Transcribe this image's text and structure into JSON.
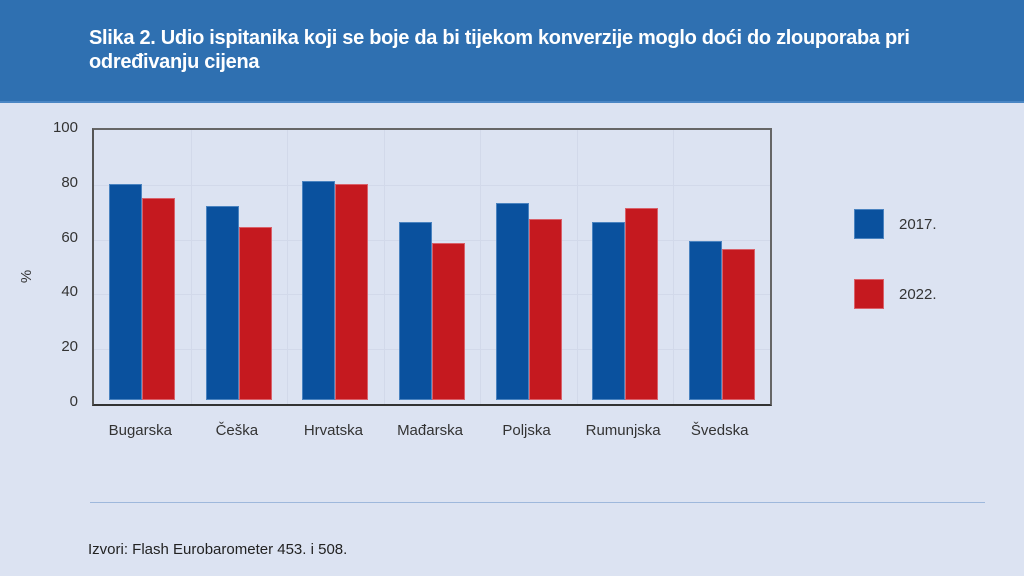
{
  "header": {
    "title": "Slika 2. Udio ispitanika koji se boje da bi tijekom konverzije moglo doći do zlouporaba pri određivanju cijena"
  },
  "colors": {
    "header_bg": "#2f70b1",
    "series_2017": "#0a519e",
    "series_2022": "#c5191f",
    "background": "#dce3f2"
  },
  "axis": {
    "y_label": "%",
    "y_ticks": [
      "100",
      "80",
      "60",
      "40",
      "20",
      "0"
    ]
  },
  "legend": [
    {
      "label": "2017.",
      "color": "#0a519e"
    },
    {
      "label": "2022.",
      "color": "#c5191f"
    }
  ],
  "categories": [
    "Bugarska",
    "Češka",
    "Hrvatska",
    "Mađarska",
    "Poljska",
    "Rumunjska",
    "Švedska"
  ],
  "footer": {
    "source": "Izvori: Flash Eurobarometer 453. i 508."
  },
  "chart_data": {
    "type": "bar",
    "title": "Slika 2. Udio ispitanika koji se boje da bi tijekom konverzije moglo doći do zlouporaba pri određivanju cijena",
    "categories": [
      "Bugarska",
      "Češka",
      "Hrvatska",
      "Mađarska",
      "Poljska",
      "Rumunjska",
      "Švedska"
    ],
    "series": [
      {
        "name": "2017.",
        "values": [
          80,
          72,
          81,
          66,
          73,
          66,
          59
        ]
      },
      {
        "name": "2022.",
        "values": [
          75,
          64,
          80,
          58,
          67,
          71,
          56
        ]
      }
    ],
    "xlabel": "",
    "ylabel": "%",
    "ylim": [
      0,
      100
    ],
    "yticks": [
      0,
      20,
      40,
      60,
      80,
      100
    ],
    "grid": true,
    "legend_position": "right",
    "source": "Izvori: Flash Eurobarometer 453. i 508."
  }
}
